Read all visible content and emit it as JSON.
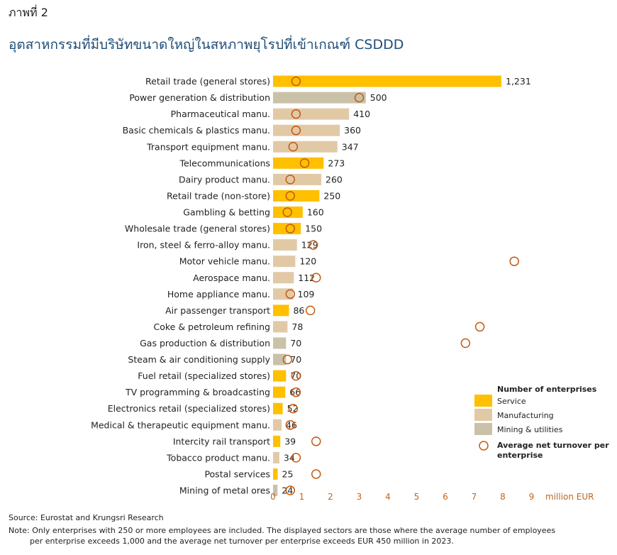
{
  "figure_label": "ภาพที่ 2",
  "title": "อุตสาหกรรมที่มีบริษัทขนาดใหญ่ในสหภาพยุโรปที่เข้าเกณฑ์ CSDDD",
  "source": "Source: Eurostat and Krungsri Research",
  "note_line1": "Note: Only enterprises with 250 or more employees are included. The displayed sectors are those where the average number of employees",
  "note_line2": "per enterprise exceeds 1,000 and the average net turnover per enterprise exceeds EUR 450 million in 2023.",
  "colors": {
    "service": "#ffc000",
    "manufacturing": "#e2c9a6",
    "mining": "#c9c2a8",
    "marker": "#c55a11",
    "tick": "#c0651d"
  },
  "legend": {
    "title": "Number of enterprises",
    "service": "Service",
    "manufacturing": "Manufacturing",
    "mining": "Mining & utilities",
    "marker_line1": "Average net turnover per",
    "marker_line2": "enterprise"
  },
  "chart_data": {
    "type": "bar",
    "orientation": "horizontal",
    "bar_series": "Number of enterprises",
    "marker_series": "Average net turnover per enterprise",
    "categories": [
      "Retail trade (general stores)",
      "Power generation & distribution",
      "Pharmaceutical manu.",
      "Basic chemicals & plastics manu.",
      "Transport equipment manu.",
      "Telecommunications",
      "Dairy product manu.",
      "Retail trade (non-store)",
      "Gambling & betting",
      "Wholesale trade (general stores)",
      "Iron, steel & ferro-alloy manu.",
      "Motor vehicle manu.",
      "Aerospace manu.",
      "Home appliance manu.",
      "Air passenger transport",
      "Coke & petroleum refining",
      "Gas production & distribution",
      "Steam & air conditioning supply",
      "Fuel retail (specialized stores)",
      "TV programming & broadcasting",
      "Electronics retail (specialized stores)",
      "Medical & therapeutic equipment manu.",
      "Intercity rail transport",
      "Tobacco product manu.",
      "Postal services",
      "Mining of metal ores"
    ],
    "enterprises": [
      1231,
      500,
      410,
      360,
      347,
      273,
      260,
      250,
      160,
      150,
      129,
      120,
      112,
      109,
      86,
      78,
      70,
      70,
      70,
      66,
      52,
      46,
      39,
      34,
      25,
      24
    ],
    "value_labels": [
      "1,231",
      "500",
      "410",
      "360",
      "347",
      "273",
      "260",
      "250",
      "160",
      "150",
      "129",
      "120",
      "112",
      "109",
      "86",
      "78",
      "70",
      "70",
      "70",
      "66",
      "52",
      "46",
      "39",
      "34",
      "25",
      "24"
    ],
    "sector_type": [
      "service",
      "mining",
      "manufacturing",
      "manufacturing",
      "manufacturing",
      "service",
      "manufacturing",
      "service",
      "service",
      "service",
      "manufacturing",
      "manufacturing",
      "manufacturing",
      "manufacturing",
      "service",
      "manufacturing",
      "mining",
      "mining",
      "service",
      "service",
      "service",
      "manufacturing",
      "service",
      "manufacturing",
      "service",
      "mining"
    ],
    "avg_turnover_million_eur": [
      0.8,
      3.0,
      0.8,
      0.8,
      0.7,
      1.1,
      0.6,
      0.6,
      0.5,
      0.6,
      1.4,
      8.4,
      1.5,
      0.6,
      1.3,
      7.2,
      6.7,
      0.5,
      0.8,
      0.8,
      0.7,
      0.6,
      1.5,
      0.8,
      1.5,
      0.6
    ],
    "x_ticks": [
      "0",
      "1",
      "2",
      "3",
      "4",
      "5",
      "6",
      "7",
      "8",
      "9"
    ],
    "x_unit": "million EUR",
    "turnover_range": [
      0,
      9
    ],
    "enterprises_range": [
      0,
      1231
    ]
  }
}
